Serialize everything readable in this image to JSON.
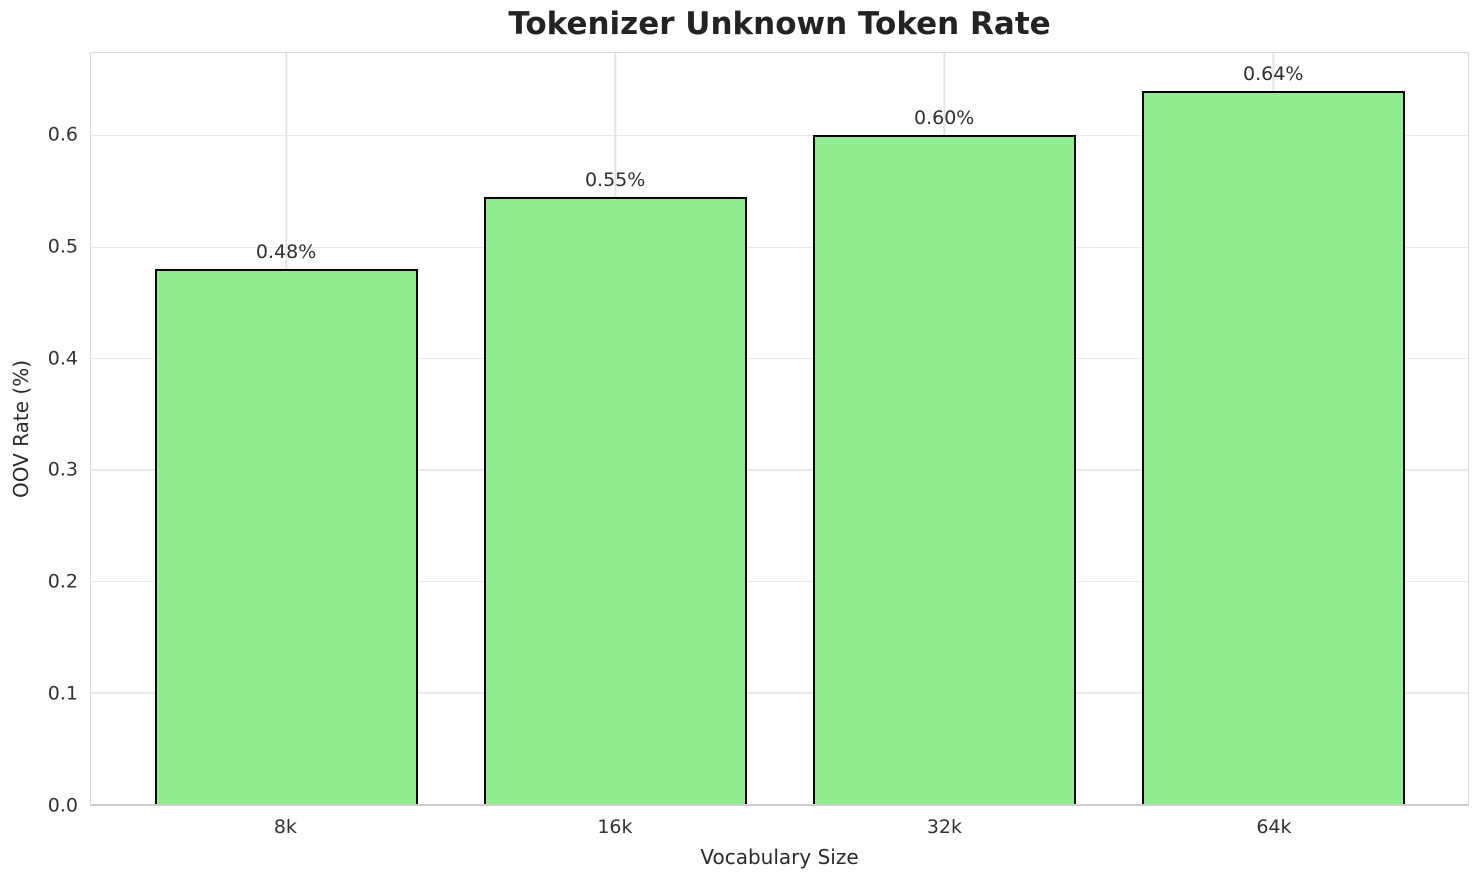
{
  "chart_data": {
    "type": "bar",
    "title": "Tokenizer Unknown Token Rate",
    "xlabel": "Vocabulary Size",
    "ylabel": "OOV Rate (%)",
    "categories": [
      "8k",
      "16k",
      "32k",
      "64k"
    ],
    "values": [
      0.48,
      0.545,
      0.6,
      0.64
    ],
    "bar_labels": [
      "0.48%",
      "0.55%",
      "0.60%",
      "0.64%"
    ],
    "ylim": [
      0,
      0.674
    ],
    "y_ticks": [
      0.0,
      0.1,
      0.2,
      0.3,
      0.4,
      0.5,
      0.6
    ],
    "y_tick_labels": [
      "0.0",
      "0.1",
      "0.2",
      "0.3",
      "0.4",
      "0.5",
      "0.6"
    ],
    "bar_color": "#90EE90",
    "bar_edge_color": "#000000",
    "grid": true,
    "legend_position": "none",
    "background_color": "#ffffff"
  }
}
